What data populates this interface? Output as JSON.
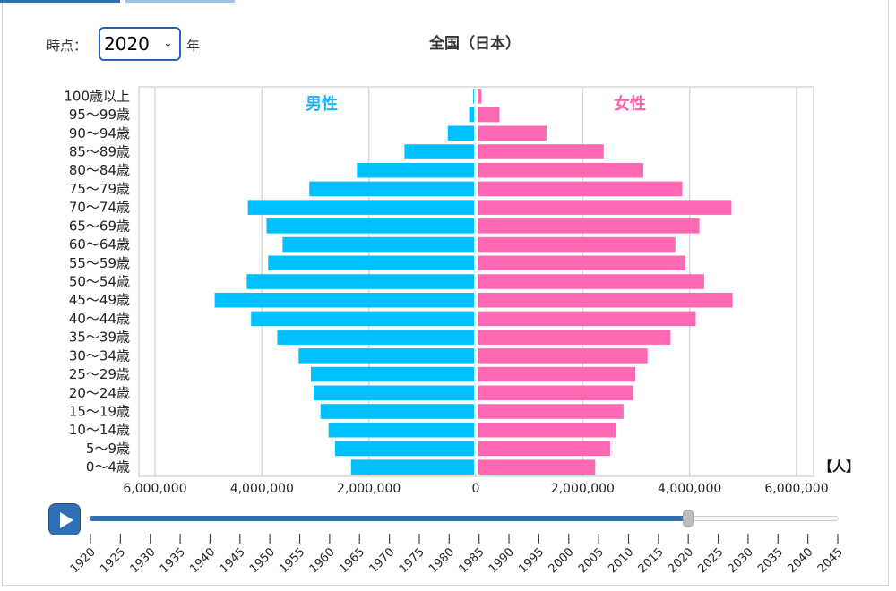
{
  "controls": {
    "time_label": "時点：",
    "year_value": "2020",
    "year_unit": "年"
  },
  "title": "全国（日本）",
  "colors": {
    "male": "#00bfff",
    "female": "#ff69b4",
    "male_label": "#1ab0f5",
    "female_label": "#ff5fa8",
    "grid": "#d6d6d6",
    "slider_fill": "#2f6fb3"
  },
  "chart_data": {
    "type": "bar",
    "orientation": "horizontal",
    "title": "全国（日本）",
    "unit_label": "【人】",
    "series_labels": [
      "男性",
      "女性"
    ],
    "categories": [
      "0〜4歳",
      "5〜9歳",
      "10〜14歳",
      "15〜19歳",
      "20〜24歳",
      "25〜29歳",
      "30〜34歳",
      "35〜39歳",
      "40〜44歳",
      "45〜49歳",
      "50〜54歳",
      "55〜59歳",
      "60〜64歳",
      "65〜69歳",
      "70〜74歳",
      "75〜79歳",
      "80〜84歳",
      "85〜89歳",
      "90〜94歳",
      "95〜99歳",
      "100歳以上"
    ],
    "series": [
      {
        "name": "男性",
        "values": [
          2300000,
          2600000,
          2720000,
          2870000,
          3000000,
          3050000,
          3280000,
          3680000,
          4170000,
          4850000,
          4250000,
          3850000,
          3580000,
          3880000,
          4230000,
          3080000,
          2190000,
          1300000,
          490000,
          90000,
          15000
        ]
      },
      {
        "name": "女性",
        "values": [
          2200000,
          2480000,
          2590000,
          2730000,
          2910000,
          2950000,
          3180000,
          3610000,
          4080000,
          4770000,
          4240000,
          3890000,
          3700000,
          4150000,
          4750000,
          3830000,
          3100000,
          2360000,
          1290000,
          410000,
          75000
        ]
      }
    ],
    "xlim": [
      -6000000,
      6000000
    ],
    "xticks": [
      -6000000,
      -4000000,
      -2000000,
      0,
      2000000,
      4000000,
      6000000
    ],
    "xtick_labels": [
      "6,000,000",
      "4,000,000",
      "2,000,000",
      "0",
      "2,000,000",
      "4,000,000",
      "6,000,000"
    ],
    "grid": true
  },
  "timeline": {
    "years": [
      "1920",
      "1925",
      "1930",
      "1935",
      "1940",
      "1945",
      "1950",
      "1955",
      "1960",
      "1965",
      "1970",
      "1975",
      "1980",
      "1985",
      "1990",
      "1995",
      "2000",
      "2005",
      "2010",
      "2015",
      "2020",
      "2025",
      "2030",
      "2035",
      "2040",
      "2045"
    ],
    "progress": 0.8
  }
}
